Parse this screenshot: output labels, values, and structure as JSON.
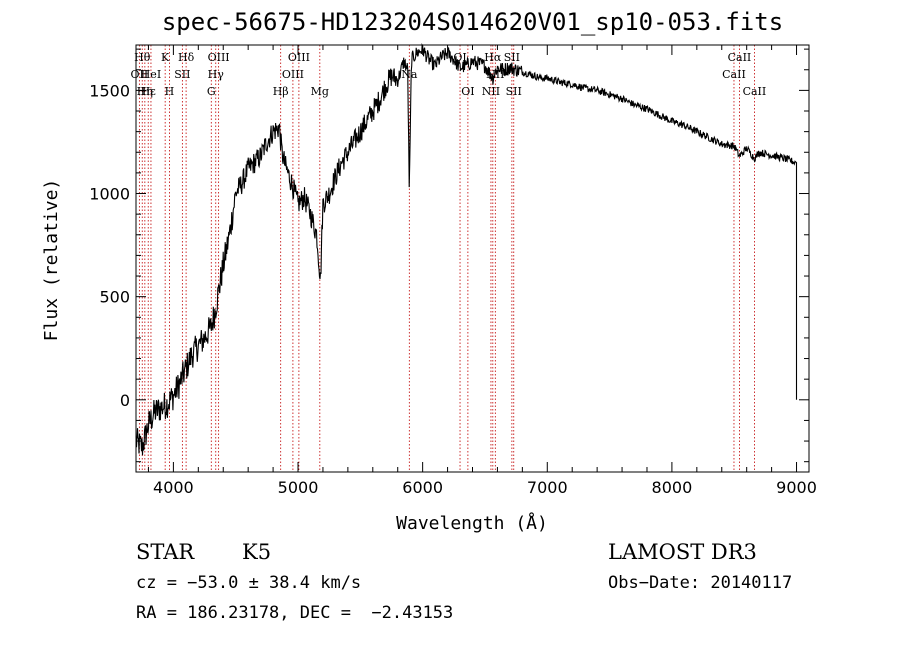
{
  "chart_data": {
    "type": "line",
    "title": "spec-56675-HD123204S014620V01_sp10-053.fits",
    "xlabel": "Wavelength (Å)",
    "ylabel": "Flux (relative)",
    "xlim": [
      3700,
      9100
    ],
    "ylim": [
      -350,
      1720
    ],
    "x_ticks": [
      {
        "value": 4000,
        "label": "4000"
      },
      {
        "value": 5000,
        "label": "5000"
      },
      {
        "value": 6000,
        "label": "6000"
      },
      {
        "value": 7000,
        "label": "7000"
      },
      {
        "value": 8000,
        "label": "8000"
      },
      {
        "value": 9000,
        "label": "9000"
      }
    ],
    "y_ticks": [
      {
        "value": 0,
        "label": "0"
      },
      {
        "value": 500,
        "label": "500"
      },
      {
        "value": 1000,
        "label": "1000"
      },
      {
        "value": 1500,
        "label": "1500"
      }
    ],
    "grid": false,
    "series": [
      {
        "color": "#000000",
        "x": [
          3700,
          3750,
          3800,
          3850,
          3900,
          3950,
          4000,
          4050,
          4100,
          4150,
          4200,
          4250,
          4300,
          4330,
          4370,
          4400,
          4450,
          4500,
          4550,
          4600,
          4650,
          4700,
          4750,
          4800,
          4850,
          4870,
          4900,
          4950,
          5000,
          5050,
          5100,
          5150,
          5180,
          5200,
          5250,
          5300,
          5350,
          5400,
          5450,
          5500,
          5550,
          5600,
          5650,
          5700,
          5750,
          5800,
          5850,
          5880,
          5893,
          5910,
          5950,
          6000,
          6050,
          6100,
          6150,
          6200,
          6250,
          6300,
          6350,
          6400,
          6450,
          6500,
          6563,
          6600,
          6650,
          6700,
          6750,
          6800,
          6850,
          6900,
          6950,
          7000,
          7100,
          7200,
          7300,
          7400,
          7500,
          7600,
          7700,
          7800,
          7900,
          8000,
          8100,
          8200,
          8300,
          8400,
          8500,
          8542,
          8600,
          8662,
          8700,
          8800,
          8900,
          8950,
          8990,
          9000
        ],
        "y": [
          -200,
          -230,
          -120,
          -60,
          -40,
          -20,
          20,
          80,
          150,
          220,
          260,
          300,
          350,
          420,
          550,
          650,
          800,
          1000,
          1050,
          1120,
          1150,
          1180,
          1250,
          1300,
          1320,
          1200,
          1130,
          1050,
          950,
          980,
          900,
          800,
          580,
          950,
          1000,
          1080,
          1150,
          1200,
          1250,
          1300,
          1350,
          1400,
          1450,
          1520,
          1570,
          1550,
          1640,
          1600,
          1000,
          1650,
          1680,
          1700,
          1650,
          1620,
          1660,
          1680,
          1650,
          1610,
          1620,
          1640,
          1630,
          1620,
          1560,
          1610,
          1600,
          1610,
          1600,
          1590,
          1580,
          1570,
          1560,
          1560,
          1540,
          1530,
          1510,
          1500,
          1480,
          1460,
          1430,
          1410,
          1380,
          1350,
          1330,
          1300,
          1270,
          1240,
          1230,
          1180,
          1220,
          1170,
          1200,
          1185,
          1170,
          1160,
          1150,
          0
        ]
      }
    ],
    "spectral_lines": [
      {
        "wavelength": 3727,
        "label": "OII",
        "row": 1
      },
      {
        "wavelength": 3750,
        "label": "Hθ",
        "row": 0
      },
      {
        "wavelength": 3771,
        "label": "Hη",
        "row": 2
      },
      {
        "wavelength": 3798,
        "label": "Hε",
        "row": 2
      },
      {
        "wavelength": 3820,
        "label": "HeI",
        "row": 1
      },
      {
        "wavelength": 3934,
        "label": "K",
        "row": 0
      },
      {
        "wavelength": 3968,
        "label": "H",
        "row": 2
      },
      {
        "wavelength": 4072,
        "label": "SII",
        "row": 1
      },
      {
        "wavelength": 4102,
        "label": "Hδ",
        "row": 0
      },
      {
        "wavelength": 4304,
        "label": "G",
        "row": 2
      },
      {
        "wavelength": 4340,
        "label": "Hγ",
        "row": 1
      },
      {
        "wavelength": 4363,
        "label": "OIII",
        "row": 0
      },
      {
        "wavelength": 4861,
        "label": "Hβ",
        "row": 2
      },
      {
        "wavelength": 4959,
        "label": "OIII",
        "row": 1
      },
      {
        "wavelength": 5007,
        "label": "OIII",
        "row": 0
      },
      {
        "wavelength": 5175,
        "label": "Mg",
        "row": 2
      },
      {
        "wavelength": 5893,
        "label": "Na",
        "row": 1
      },
      {
        "wavelength": 6300,
        "label": "OI",
        "row": 0
      },
      {
        "wavelength": 6363,
        "label": "OI",
        "row": 2
      },
      {
        "wavelength": 6548,
        "label": "NII",
        "row": 2
      },
      {
        "wavelength": 6563,
        "label": "Hα",
        "row": 0
      },
      {
        "wavelength": 6583,
        "label": "NII",
        "row": 1
      },
      {
        "wavelength": 6716,
        "label": "SII",
        "row": 0
      },
      {
        "wavelength": 6731,
        "label": "SII",
        "row": 2
      },
      {
        "wavelength": 8498,
        "label": "CaII",
        "row": 1
      },
      {
        "wavelength": 8542,
        "label": "CaII",
        "row": 0
      },
      {
        "wavelength": 8662,
        "label": "CaII",
        "row": 2
      }
    ],
    "line_color": "#c00000"
  },
  "info": {
    "object_class": "STAR",
    "subclass": "K5",
    "survey": "LAMOST DR3",
    "cz": "cz = −53.0 ± 38.4 km/s",
    "obs_date": "Obs−Date: 20140117",
    "coords": "RA = 186.23178, DEC =  −2.43153"
  }
}
